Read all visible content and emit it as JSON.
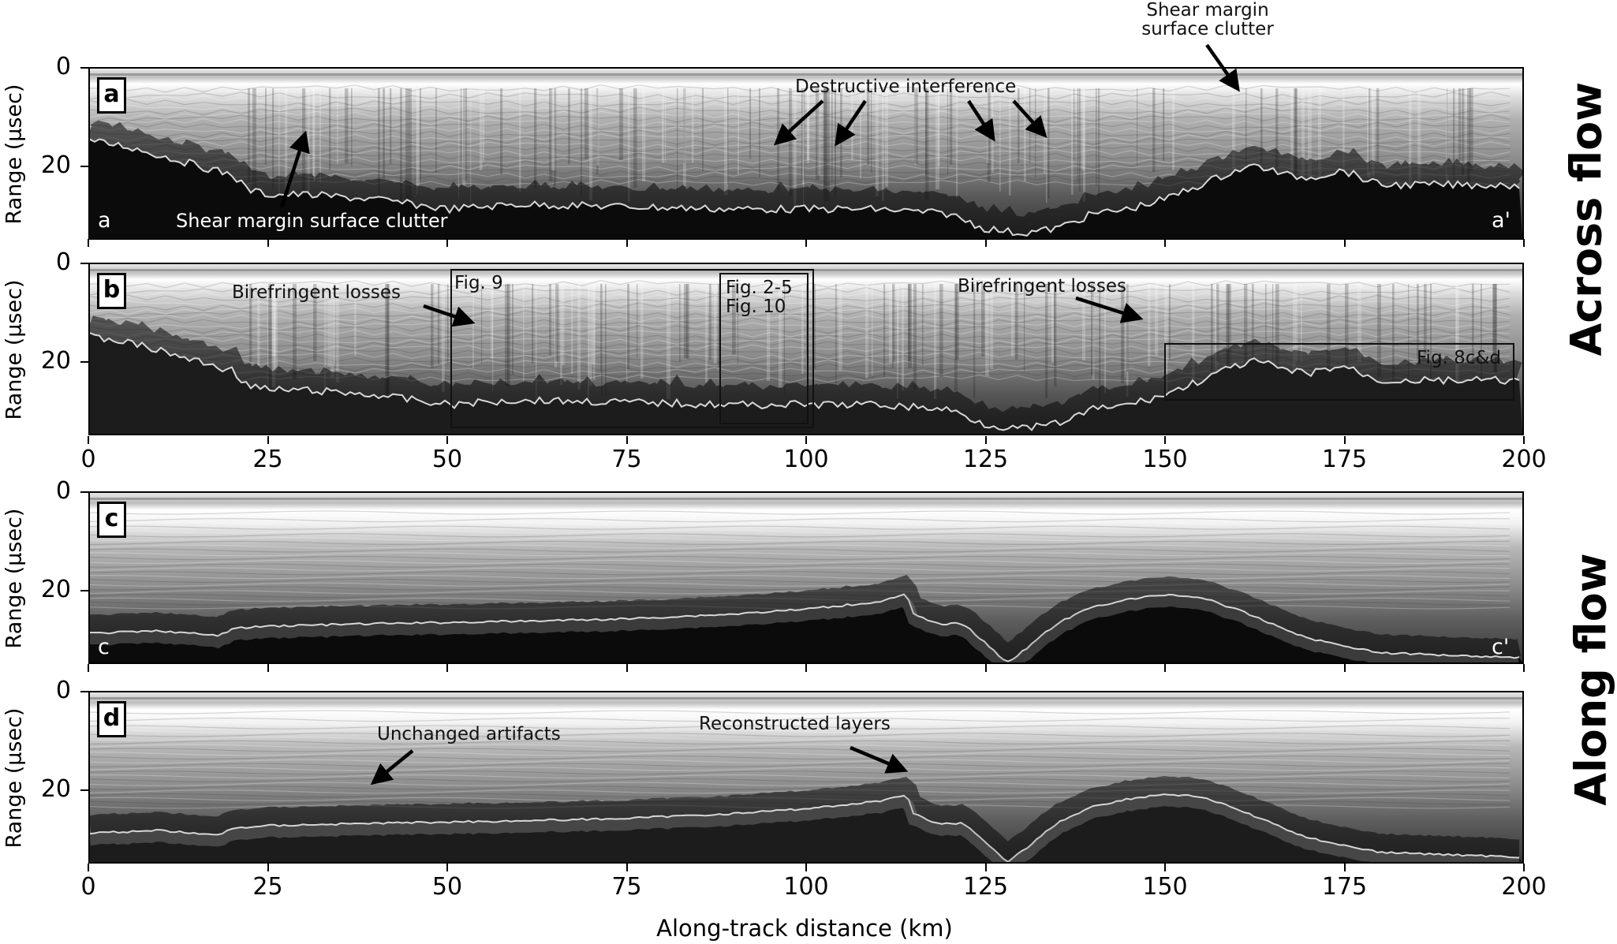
{
  "chart_data": {
    "type": "heatmap",
    "description": "Four stacked radargram panels (grayscale echo power) sharing an along-track distance x-axis",
    "xlabel": "Along-track distance (km)",
    "ylabel": "Range (μsec)",
    "xlim": [
      0,
      200
    ],
    "ylim": [
      35,
      0
    ],
    "xticks": [
      0,
      25,
      50,
      75,
      100,
      125,
      150,
      175,
      200
    ],
    "yticks": [
      0,
      20
    ],
    "colormap": "gray",
    "side_labels": [
      "Across flow",
      "Along flow"
    ],
    "panels": [
      {
        "id": "a",
        "group": "Across flow",
        "start_label": "a",
        "end_label": "a'",
        "bed_range_usec": {
          "x_km": [
            0,
            5,
            10,
            15,
            20,
            22,
            25,
            30,
            40,
            50,
            60,
            75,
            90,
            100,
            110,
            120,
            125,
            130,
            135,
            140,
            145,
            150,
            155,
            160,
            163,
            167,
            170,
            175,
            180,
            190,
            200
          ],
          "y": [
            15,
            16,
            18,
            20,
            22,
            25,
            26,
            26,
            27,
            29,
            28,
            28.5,
            29,
            29,
            29,
            30,
            33,
            34,
            33,
            30,
            29,
            27,
            24,
            21,
            20,
            22,
            22.5,
            21,
            24,
            24,
            24
          ]
        },
        "annotations": [
          {
            "text": "Shear margin surface clutter",
            "x_km": 30,
            "y_usec": 13
          },
          {
            "text": "Destructive interference",
            "x_km": [
              96,
              104,
              127,
              134
            ],
            "y_usec": 16
          },
          {
            "text": "Shear margin surface clutter",
            "x_km": 161,
            "y_usec": 3
          }
        ]
      },
      {
        "id": "b",
        "group": "Across flow",
        "annotations": [
          {
            "text": "Birefringent losses",
            "x_km": 54,
            "y_usec": 12
          },
          {
            "text": "Birefringent losses",
            "x_km": 147,
            "y_usec": 11
          }
        ],
        "boxes": [
          {
            "label": "Fig. 9",
            "x_km": [
              50.5,
              101
            ],
            "y_usec": [
              1,
              33.5
            ]
          },
          {
            "label": "Fig. 2-5\nFig. 10",
            "x_km": [
              88,
              101
            ],
            "y_usec": [
              1,
              32.5
            ]
          },
          {
            "label": "Fig. 8c&d",
            "x_km": [
              150,
              199
            ],
            "y_usec": [
              16,
              28
            ]
          }
        ]
      },
      {
        "id": "c",
        "group": "Along flow",
        "start_label": "c",
        "end_label": "c'",
        "bed_range_usec": {
          "x_km": [
            0,
            10,
            18,
            20,
            25,
            40,
            60,
            75,
            90,
            100,
            110,
            114,
            115,
            118,
            122,
            125,
            128,
            130,
            135,
            140,
            145,
            150,
            155,
            160,
            170,
            180,
            200
          ],
          "y": [
            29,
            28.5,
            29.5,
            28,
            27.5,
            27,
            26.5,
            26,
            25,
            24,
            22.5,
            21,
            25,
            27,
            27,
            31,
            35,
            33,
            27,
            23.5,
            22,
            21,
            21.5,
            24,
            30,
            33,
            34
          ]
        },
        "annotations": []
      },
      {
        "id": "d",
        "group": "Along flow",
        "bed_range_usec": {
          "x_km": [
            0,
            10,
            18,
            20,
            25,
            40,
            60,
            75,
            90,
            100,
            110,
            114,
            115,
            118,
            122,
            125,
            128,
            130,
            135,
            140,
            145,
            150,
            155,
            160,
            170,
            180,
            200
          ],
          "y": [
            29,
            28.5,
            29.5,
            28,
            27.5,
            27,
            26.5,
            26,
            25,
            24,
            22.5,
            21,
            25,
            27,
            27,
            31,
            35,
            33,
            27,
            23.5,
            22,
            21,
            21.5,
            24,
            30,
            33,
            34
          ]
        },
        "annotations": [
          {
            "text": "Unchanged artifacts",
            "x_km": 40,
            "y_usec": 19
          },
          {
            "text": "Reconstructed layers",
            "x_km": 115,
            "y_usec": 16
          }
        ]
      }
    ]
  },
  "axes": {
    "ylabel": "Range (μsec)",
    "ytick_0": "0",
    "ytick_20": "20",
    "xlabel": "Along-track distance (km)",
    "xticks": [
      "0",
      "25",
      "50",
      "75",
      "100",
      "125",
      "150",
      "175",
      "200"
    ]
  },
  "panels": {
    "a": {
      "label": "a",
      "start": "a",
      "end": "a'"
    },
    "b": {
      "label": "b"
    },
    "c": {
      "label": "c",
      "start": "c",
      "end": "c'"
    },
    "d": {
      "label": "d"
    }
  },
  "annotations": {
    "a_clutter_left": "Shear margin surface clutter",
    "a_destructive": "Destructive interference",
    "a_clutter_right_l1": "Shear margin",
    "a_clutter_right_l2": "surface clutter",
    "b_biref_left": "Birefringent losses",
    "b_biref_right": "Birefringent losses",
    "b_fig9": "Fig. 9",
    "b_fig25": "Fig. 2-5",
    "b_fig10": "Fig. 10",
    "b_fig8": "Fig. 8c&d",
    "d_unchanged": "Unchanged artifacts",
    "d_reconstructed": "Reconstructed layers"
  },
  "side_labels": {
    "across": "Across flow",
    "along": "Along flow"
  }
}
